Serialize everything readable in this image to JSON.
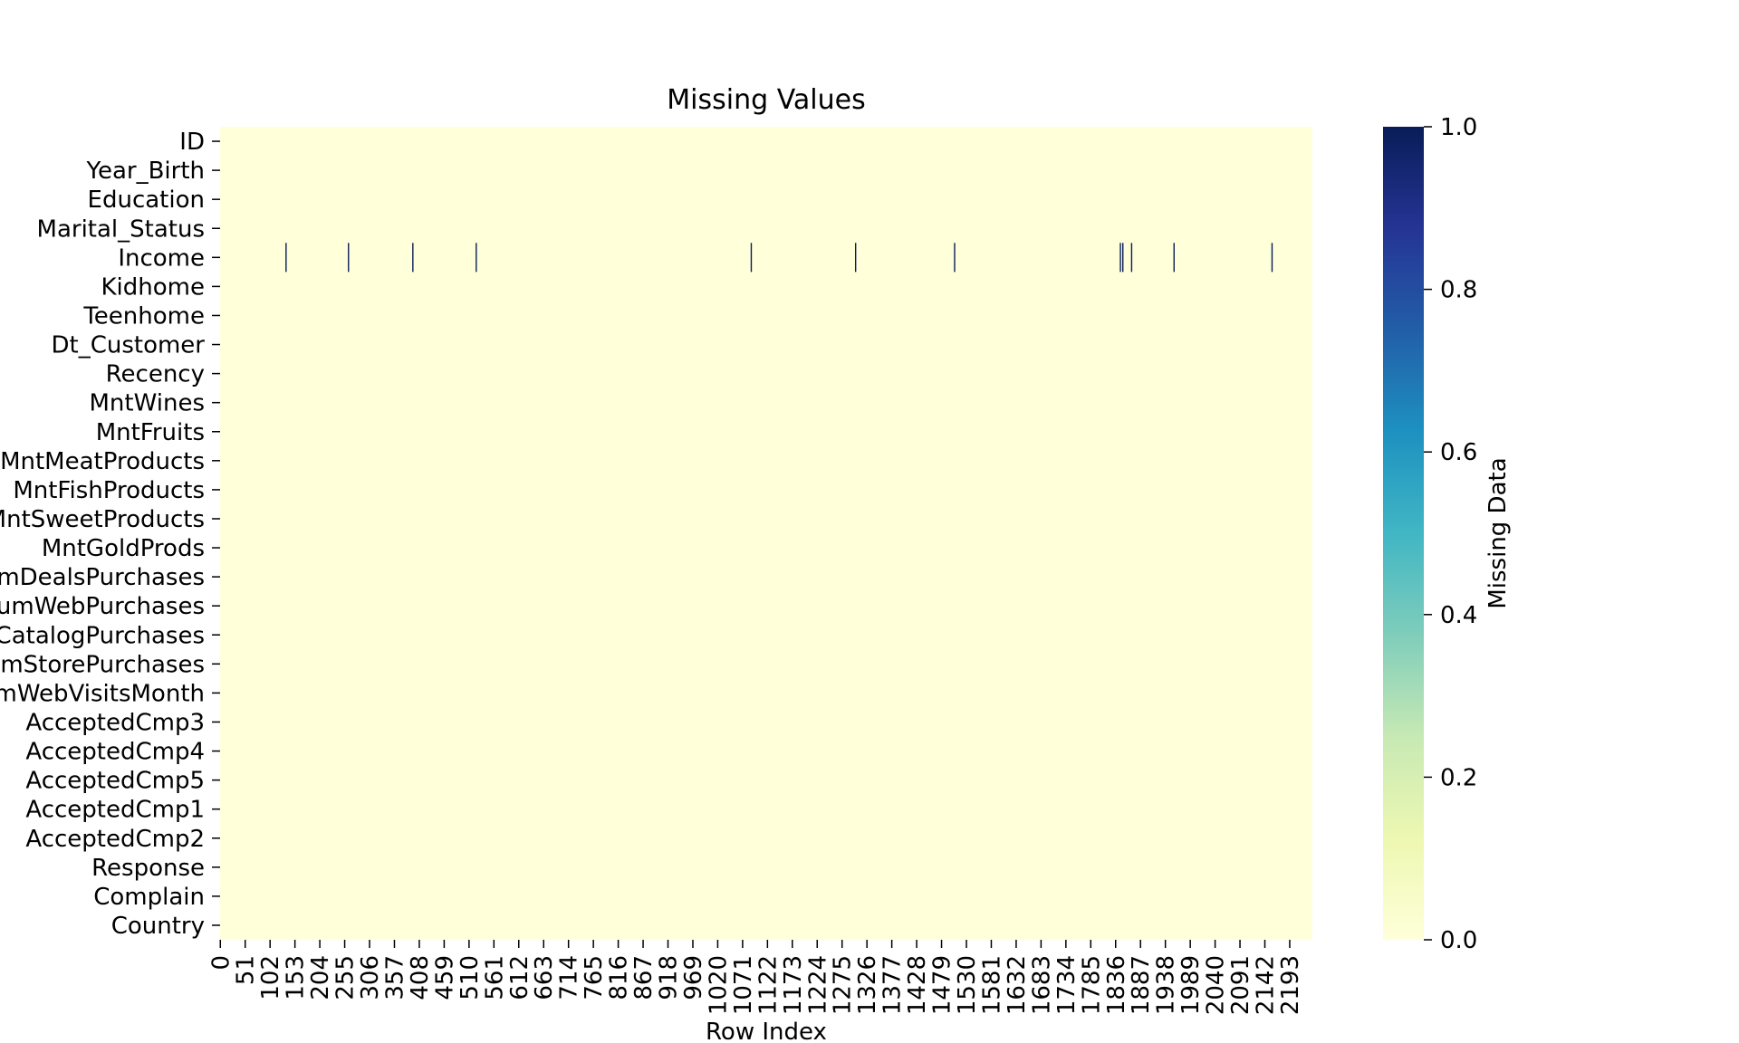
{
  "chart_data": {
    "type": "heatmap",
    "title": "Missing Values",
    "xlabel": "Row Index",
    "ylabel": "",
    "colorbar_label": "Missing Data",
    "colormap": "YlGnBu",
    "colorbar_stops": [
      "#ffffd9",
      "#edf8b1",
      "#c7e9b4",
      "#7fcdbb",
      "#41b6c4",
      "#1d91c0",
      "#225ea8",
      "#253494",
      "#081d58"
    ],
    "colorbar_range": [
      0.0,
      1.0
    ],
    "colorbar_ticks": [
      "0.0",
      "0.2",
      "0.4",
      "0.6",
      "0.8",
      "1.0"
    ],
    "n_rows": 2240,
    "x_ticks": [
      "0",
      "51",
      "102",
      "153",
      "204",
      "255",
      "306",
      "357",
      "408",
      "459",
      "510",
      "561",
      "612",
      "663",
      "714",
      "765",
      "816",
      "867",
      "918",
      "969",
      "1020",
      "1071",
      "1122",
      "1173",
      "1224",
      "1275",
      "1326",
      "1377",
      "1428",
      "1479",
      "1530",
      "1581",
      "1632",
      "1683",
      "1734",
      "1785",
      "1836",
      "1887",
      "1938",
      "1989",
      "2040",
      "2091",
      "2142",
      "2193"
    ],
    "columns": [
      "ID",
      "Year_Birth",
      "Education",
      "Marital_Status",
      "Income",
      "Kidhome",
      "Teenhome",
      "Dt_Customer",
      "Recency",
      "MntWines",
      "MntFruits",
      "MntMeatProducts",
      "MntFishProducts",
      "MntSweetProducts",
      "MntGoldProds",
      "NumDealsPurchases",
      "NumWebPurchases",
      "NumCatalogPurchases",
      "NumStorePurchases",
      "NumWebVisitsMonth",
      "AcceptedCmp3",
      "AcceptedCmp4",
      "AcceptedCmp5",
      "AcceptedCmp1",
      "AcceptedCmp2",
      "Response",
      "Complain",
      "Country"
    ],
    "missing": [
      {
        "column": "Income",
        "rows": [
          134,
          262,
          394,
          524,
          1088,
          1302,
          1505,
          1845,
          1850,
          1868,
          1955,
          2156
        ]
      }
    ]
  }
}
